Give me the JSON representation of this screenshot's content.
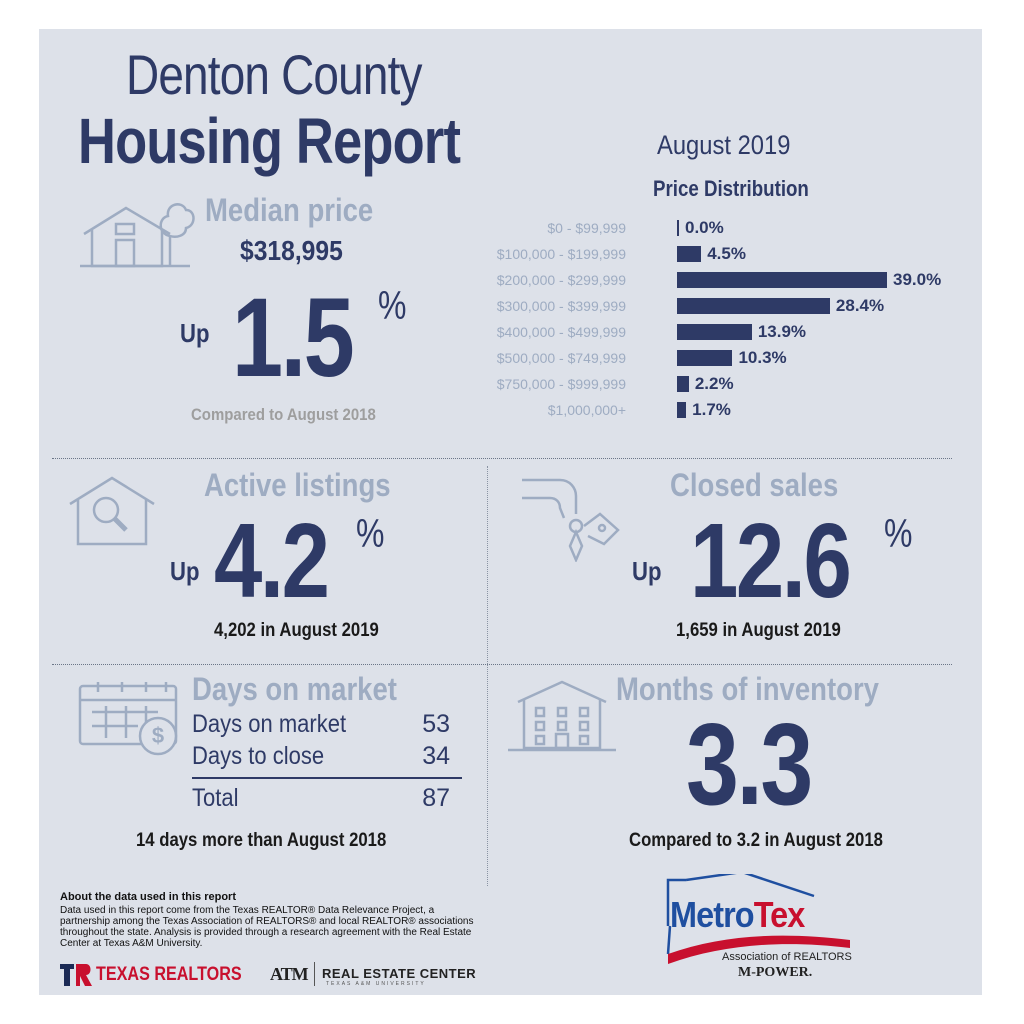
{
  "header": {
    "title_line1": "Denton County",
    "title_line2": "Housing Report",
    "period": "August 2019"
  },
  "median_price": {
    "heading": "Median price",
    "value": "$318,995",
    "direction": "Up",
    "change": "1.5",
    "percent_sign": "%",
    "comparison": "Compared to August 2018",
    "icon": "house-tree-icon"
  },
  "price_distribution": {
    "title": "Price Distribution",
    "chart_data": {
      "type": "bar",
      "title": "Price Distribution",
      "orientation": "horizontal",
      "categories": [
        "$0 - $99,999",
        "$100,000 - $199,999",
        "$200,000 - $299,999",
        "$300,000 - $399,999",
        "$400,000 - $499,999",
        "$500,000 - $749,999",
        "$750,000 - $999,999",
        "$1,000,000+"
      ],
      "values": [
        0.0,
        4.5,
        39.0,
        28.4,
        13.9,
        10.3,
        2.2,
        1.7
      ],
      "value_labels": [
        "0.0%",
        "4.5%",
        "39.0%",
        "28.4%",
        "13.9%",
        "10.3%",
        "2.2%",
        "1.7%"
      ],
      "xlim": [
        0,
        39
      ],
      "grid": false,
      "color": "#2e3a66"
    }
  },
  "active_listings": {
    "heading": "Active listings",
    "direction": "Up",
    "change": "4.2",
    "percent_sign": "%",
    "detail": "4,202 in August 2019",
    "icon": "house-magnifier-icon"
  },
  "closed_sales": {
    "heading": "Closed sales",
    "direction": "Up",
    "change": "12.6",
    "percent_sign": "%",
    "detail": "1,659 in August 2019",
    "icon": "hand-key-icon"
  },
  "days_on_market": {
    "heading": "Days on market",
    "rows": [
      {
        "label": "Days on market",
        "value": "53"
      },
      {
        "label": "Days to close",
        "value": "34"
      }
    ],
    "total_label": "Total",
    "total_value": "87",
    "comparison": "14 days more than August 2018",
    "icon": "calendar-dollar-icon"
  },
  "months_inventory": {
    "heading": "Months of inventory",
    "value": "3.3",
    "comparison": "Compared to 3.2 in August 2018",
    "icon": "apartment-building-icon"
  },
  "about": {
    "title": "About the data used in this report",
    "text": "Data used in this report come from the Texas REALTOR® Data Relevance Project, a partnership among the Texas Association of REALTORS® and local REALTOR® associations throughout the state. Analysis is provided through a research agreement with the Real Estate Center at Texas A&M University."
  },
  "logos": {
    "texas_realtors": "TEXAS REALTORS",
    "tr_mark": "TR",
    "atm_mark": "ATM",
    "real_estate_center": "REAL ESTATE CENTER",
    "real_estate_center_sub": "TEXAS A&M UNIVERSITY",
    "metrotex_a": "Metro",
    "metrotex_b": "Tex",
    "metrotex_sub": "Association of REALTORS",
    "mpower": "M-POWER."
  },
  "colors": {
    "navy": "#2e3a66",
    "muted_blue": "#9eacc2",
    "panel": "#dde1e9",
    "texas_red": "#c8102e",
    "metrotex_blue": "#1f4fa0"
  }
}
